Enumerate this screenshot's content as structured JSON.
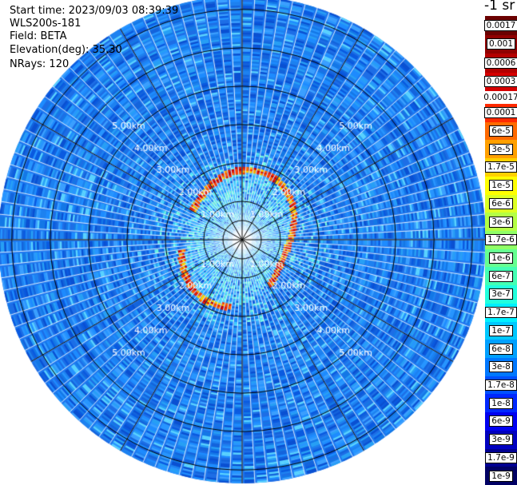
{
  "info": {
    "start_time": "Start time: 2023/09/03 08:39:39",
    "instrument": "WLS200s-181",
    "field": "Field: BETA",
    "elevation": "Elevation(deg): 35.30",
    "nrays": "NRays: 120"
  },
  "colorbar": {
    "title": "-1 sr",
    "upper_entries": [
      {
        "label": "0.0017",
        "color": "#6b0000"
      },
      {
        "label": "0.001",
        "color": "#8f0000"
      },
      {
        "label": "0.0006",
        "color": "#b30000"
      },
      {
        "label": "0.0003",
        "color": "#d50000"
      }
    ],
    "separator_label": "0.00017",
    "lower_entries": [
      {
        "label": "0.0001",
        "color": "#ff2a00"
      },
      {
        "label": "6e-5",
        "color": "#ff6a00"
      },
      {
        "label": "3e-5",
        "color": "#ffa000"
      },
      {
        "label": "1.7e-5",
        "color": "#ffd000"
      },
      {
        "label": "1e-5",
        "color": "#ffff00"
      },
      {
        "label": "6e-6",
        "color": "#ddff22"
      },
      {
        "label": "3e-6",
        "color": "#b4ff44"
      },
      {
        "label": "1.7e-6",
        "color": "#90ff66"
      },
      {
        "label": "1e-6",
        "color": "#66ff90"
      },
      {
        "label": "6e-7",
        "color": "#44ffb4"
      },
      {
        "label": "3e-7",
        "color": "#22ffdd"
      },
      {
        "label": "1.7e-7",
        "color": "#00f0ff"
      },
      {
        "label": "1e-7",
        "color": "#00c8ff"
      },
      {
        "label": "6e-8",
        "color": "#00a0ff"
      },
      {
        "label": "3e-8",
        "color": "#0078ff"
      },
      {
        "label": "1.7e-8",
        "color": "#0050ff"
      },
      {
        "label": "1e-8",
        "color": "#0028ff"
      },
      {
        "label": "6e-9",
        "color": "#0000f0"
      },
      {
        "label": "3e-9",
        "color": "#0000c0"
      },
      {
        "label": "1.7e-9",
        "color": "#000090"
      },
      {
        "label": "1e-9",
        "color": "#000064"
      }
    ]
  },
  "range_rings": {
    "labels": [
      "1.00km",
      "2.00km",
      "3.00km",
      "4.00km",
      "5.00km"
    ],
    "ring_km": [
      1,
      2,
      3,
      4,
      5,
      6
    ],
    "max_km": 6.35
  },
  "plot_colors": {
    "background_blue": "#1e78f0",
    "ring_color": "#000000",
    "ray_gap_color": "#ffffff",
    "label_color": "#ffffff"
  }
}
